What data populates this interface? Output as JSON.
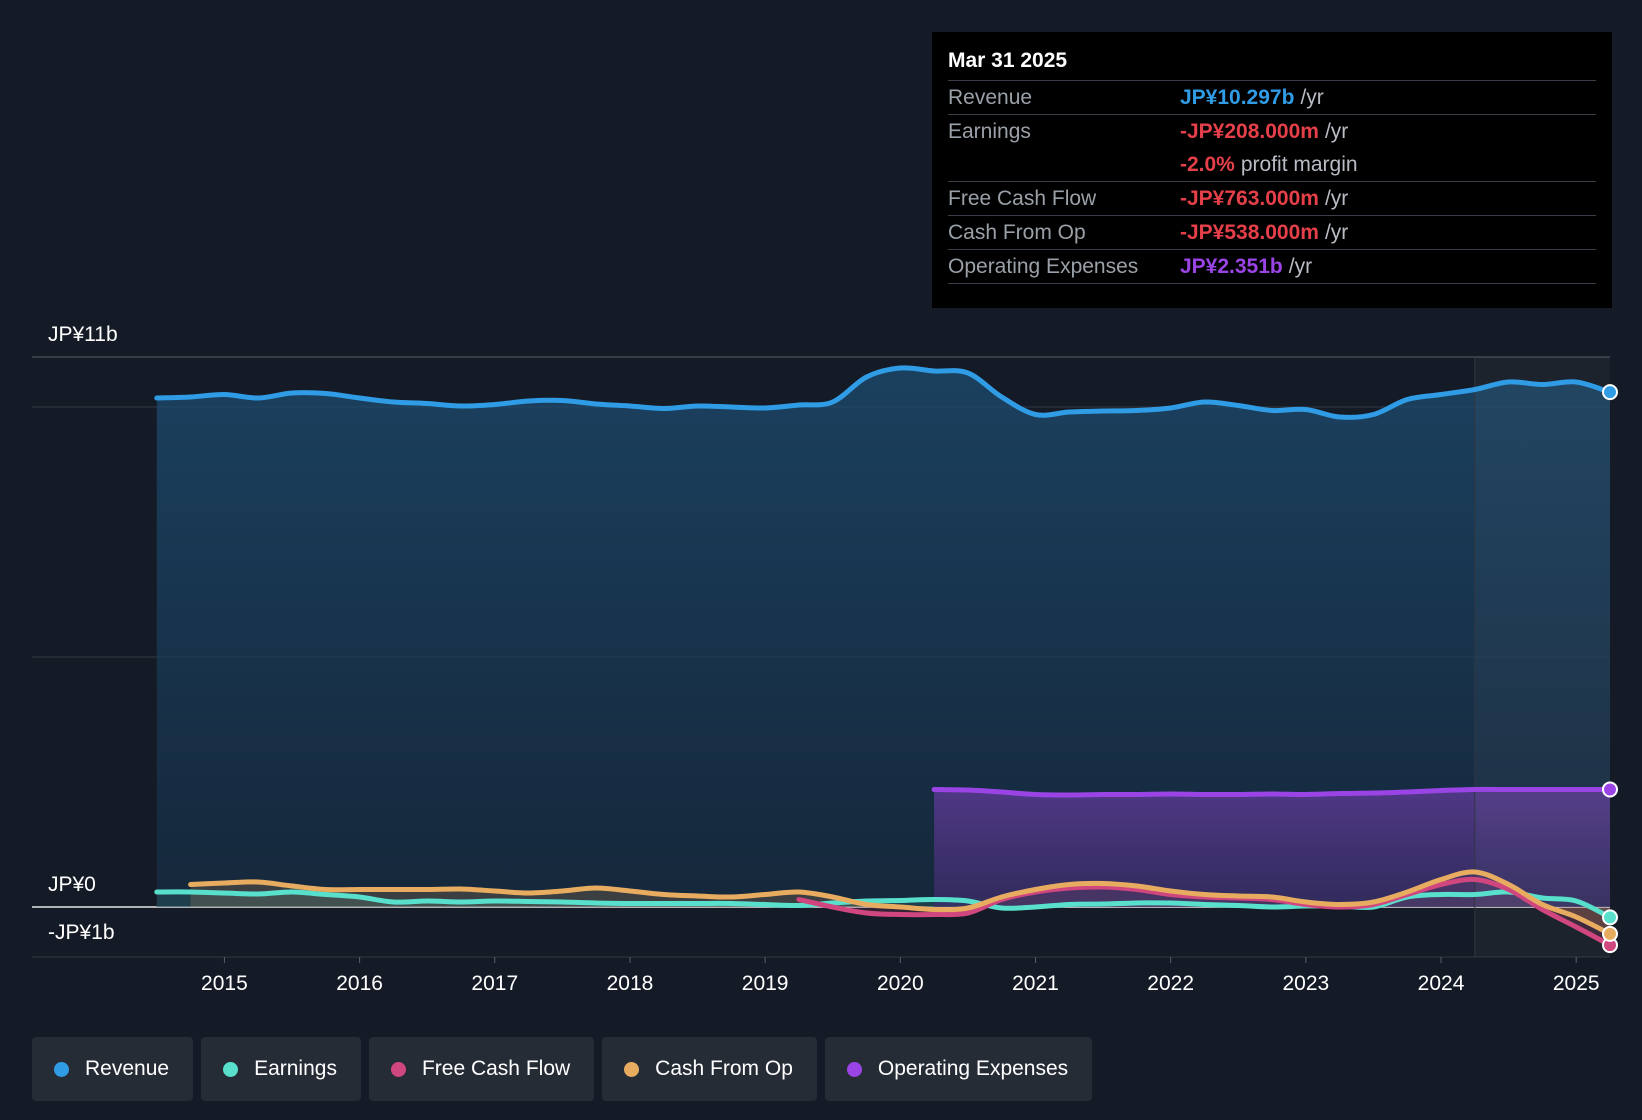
{
  "chart_data": {
    "type": "area",
    "y_unit": "JP¥",
    "ylim": [
      -1.0,
      11.0
    ],
    "y_tick_labels": [
      {
        "value": 11,
        "label": "JP¥11b"
      },
      {
        "value": 0,
        "label": "JP¥0"
      },
      {
        "value": -1,
        "label": "-JP¥1b"
      }
    ],
    "x_ticks": [
      "2015",
      "2016",
      "2017",
      "2018",
      "2019",
      "2020",
      "2021",
      "2022",
      "2023",
      "2024",
      "2025"
    ],
    "x_range": [
      2014.05,
      2025.25
    ],
    "forecast_start": 2024.25,
    "series": [
      {
        "name": "Revenue",
        "color": "#2f9ce5",
        "fill": true,
        "points": [
          [
            2014.5,
            10.18
          ],
          [
            2014.75,
            10.2
          ],
          [
            2015.0,
            10.25
          ],
          [
            2015.25,
            10.18
          ],
          [
            2015.5,
            10.28
          ],
          [
            2015.75,
            10.27
          ],
          [
            2016.0,
            10.18
          ],
          [
            2016.25,
            10.1
          ],
          [
            2016.5,
            10.07
          ],
          [
            2016.75,
            10.02
          ],
          [
            2017.0,
            10.05
          ],
          [
            2017.25,
            10.12
          ],
          [
            2017.5,
            10.13
          ],
          [
            2017.75,
            10.06
          ],
          [
            2018.0,
            10.02
          ],
          [
            2018.25,
            9.97
          ],
          [
            2018.5,
            10.02
          ],
          [
            2018.75,
            10.0
          ],
          [
            2019.0,
            9.98
          ],
          [
            2019.25,
            10.04
          ],
          [
            2019.5,
            10.1
          ],
          [
            2019.75,
            10.6
          ],
          [
            2020.0,
            10.78
          ],
          [
            2020.25,
            10.72
          ],
          [
            2020.5,
            10.68
          ],
          [
            2020.75,
            10.2
          ],
          [
            2021.0,
            9.85
          ],
          [
            2021.25,
            9.9
          ],
          [
            2021.5,
            9.92
          ],
          [
            2021.75,
            9.93
          ],
          [
            2022.0,
            9.98
          ],
          [
            2022.25,
            10.1
          ],
          [
            2022.5,
            10.03
          ],
          [
            2022.75,
            9.93
          ],
          [
            2023.0,
            9.95
          ],
          [
            2023.25,
            9.8
          ],
          [
            2023.5,
            9.85
          ],
          [
            2023.75,
            10.15
          ],
          [
            2024.0,
            10.25
          ],
          [
            2024.25,
            10.35
          ],
          [
            2024.5,
            10.5
          ],
          [
            2024.75,
            10.45
          ],
          [
            2025.0,
            10.5
          ],
          [
            2025.25,
            10.297
          ]
        ]
      },
      {
        "name": "Earnings",
        "color": "#59e0cc",
        "fill": true,
        "points": [
          [
            2014.5,
            0.3
          ],
          [
            2014.75,
            0.3
          ],
          [
            2015.0,
            0.28
          ],
          [
            2015.25,
            0.26
          ],
          [
            2015.5,
            0.3
          ],
          [
            2015.75,
            0.25
          ],
          [
            2016.0,
            0.2
          ],
          [
            2016.25,
            0.1
          ],
          [
            2016.5,
            0.12
          ],
          [
            2016.75,
            0.1
          ],
          [
            2017.0,
            0.12
          ],
          [
            2017.25,
            0.11
          ],
          [
            2017.5,
            0.1
          ],
          [
            2017.75,
            0.08
          ],
          [
            2018.0,
            0.07
          ],
          [
            2018.25,
            0.07
          ],
          [
            2018.5,
            0.07
          ],
          [
            2018.75,
            0.07
          ],
          [
            2019.0,
            0.05
          ],
          [
            2019.25,
            0.03
          ],
          [
            2019.5,
            0.08
          ],
          [
            2019.75,
            0.12
          ],
          [
            2020.0,
            0.13
          ],
          [
            2020.25,
            0.15
          ],
          [
            2020.5,
            0.12
          ],
          [
            2020.75,
            -0.02
          ],
          [
            2021.0,
            0.0
          ],
          [
            2021.25,
            0.05
          ],
          [
            2021.5,
            0.06
          ],
          [
            2021.75,
            0.08
          ],
          [
            2022.0,
            0.08
          ],
          [
            2022.25,
            0.05
          ],
          [
            2022.5,
            0.03
          ],
          [
            2022.75,
            0.0
          ],
          [
            2023.0,
            0.02
          ],
          [
            2023.25,
            0.02
          ],
          [
            2023.5,
            0.0
          ],
          [
            2023.75,
            0.2
          ],
          [
            2024.0,
            0.25
          ],
          [
            2024.25,
            0.25
          ],
          [
            2024.5,
            0.3
          ],
          [
            2024.75,
            0.18
          ],
          [
            2025.0,
            0.12
          ],
          [
            2025.25,
            -0.208
          ]
        ]
      },
      {
        "name": "Free Cash Flow",
        "color": "#d0467e",
        "fill": true,
        "points": [
          [
            2019.25,
            0.15
          ],
          [
            2019.5,
            0.0
          ],
          [
            2019.75,
            -0.12
          ],
          [
            2020.0,
            -0.15
          ],
          [
            2020.25,
            -0.15
          ],
          [
            2020.5,
            -0.12
          ],
          [
            2020.75,
            0.15
          ],
          [
            2021.0,
            0.3
          ],
          [
            2021.25,
            0.38
          ],
          [
            2021.5,
            0.4
          ],
          [
            2021.75,
            0.35
          ],
          [
            2022.0,
            0.25
          ],
          [
            2022.25,
            0.2
          ],
          [
            2022.5,
            0.18
          ],
          [
            2022.75,
            0.15
          ],
          [
            2023.0,
            0.05
          ],
          [
            2023.25,
            0.0
          ],
          [
            2023.5,
            0.05
          ],
          [
            2023.75,
            0.25
          ],
          [
            2024.0,
            0.45
          ],
          [
            2024.25,
            0.55
          ],
          [
            2024.5,
            0.35
          ],
          [
            2024.75,
            -0.05
          ],
          [
            2025.0,
            -0.4
          ],
          [
            2025.25,
            -0.763
          ]
        ]
      },
      {
        "name": "Cash From Op",
        "color": "#e8ac60",
        "fill": true,
        "points": [
          [
            2014.75,
            0.45
          ],
          [
            2015.0,
            0.48
          ],
          [
            2015.25,
            0.5
          ],
          [
            2015.5,
            0.42
          ],
          [
            2015.75,
            0.35
          ],
          [
            2016.0,
            0.35
          ],
          [
            2016.25,
            0.35
          ],
          [
            2016.5,
            0.35
          ],
          [
            2016.75,
            0.36
          ],
          [
            2017.0,
            0.32
          ],
          [
            2017.25,
            0.28
          ],
          [
            2017.5,
            0.32
          ],
          [
            2017.75,
            0.38
          ],
          [
            2018.0,
            0.32
          ],
          [
            2018.25,
            0.25
          ],
          [
            2018.5,
            0.22
          ],
          [
            2018.75,
            0.2
          ],
          [
            2019.0,
            0.25
          ],
          [
            2019.25,
            0.3
          ],
          [
            2019.5,
            0.2
          ],
          [
            2019.75,
            0.05
          ],
          [
            2020.0,
            0.0
          ],
          [
            2020.25,
            -0.05
          ],
          [
            2020.5,
            -0.02
          ],
          [
            2020.75,
            0.2
          ],
          [
            2021.0,
            0.35
          ],
          [
            2021.25,
            0.45
          ],
          [
            2021.5,
            0.47
          ],
          [
            2021.75,
            0.42
          ],
          [
            2022.0,
            0.32
          ],
          [
            2022.25,
            0.25
          ],
          [
            2022.5,
            0.22
          ],
          [
            2022.75,
            0.2
          ],
          [
            2023.0,
            0.1
          ],
          [
            2023.25,
            0.05
          ],
          [
            2023.5,
            0.1
          ],
          [
            2023.75,
            0.3
          ],
          [
            2024.0,
            0.55
          ],
          [
            2024.25,
            0.7
          ],
          [
            2024.5,
            0.45
          ],
          [
            2024.75,
            0.05
          ],
          [
            2025.0,
            -0.2
          ],
          [
            2025.25,
            -0.538
          ]
        ]
      },
      {
        "name": "Operating Expenses",
        "color": "#9b44e6",
        "fill": true,
        "points": [
          [
            2020.25,
            2.35
          ],
          [
            2020.5,
            2.34
          ],
          [
            2020.75,
            2.3
          ],
          [
            2021.0,
            2.25
          ],
          [
            2021.25,
            2.24
          ],
          [
            2021.5,
            2.25
          ],
          [
            2021.75,
            2.25
          ],
          [
            2022.0,
            2.26
          ],
          [
            2022.25,
            2.25
          ],
          [
            2022.5,
            2.25
          ],
          [
            2022.75,
            2.26
          ],
          [
            2023.0,
            2.25
          ],
          [
            2023.25,
            2.27
          ],
          [
            2023.5,
            2.28
          ],
          [
            2023.75,
            2.3
          ],
          [
            2024.0,
            2.33
          ],
          [
            2024.25,
            2.35
          ],
          [
            2024.5,
            2.35
          ],
          [
            2024.75,
            2.35
          ],
          [
            2025.0,
            2.35
          ],
          [
            2025.25,
            2.351
          ]
        ]
      }
    ],
    "tooltip": {
      "date": "Mar 31 2025",
      "rows": [
        {
          "label": "Revenue",
          "value": "JP¥10.297b",
          "unit": "/yr",
          "color": "#2f9ce5"
        },
        {
          "label": "Earnings",
          "value": "-JP¥208.000m",
          "unit": "/yr",
          "color": "#e5404a"
        },
        {
          "label": "",
          "value": "-2.0%",
          "unit": "profit margin",
          "color": "#e5404a"
        },
        {
          "label": "Free Cash Flow",
          "value": "-JP¥763.000m",
          "unit": "/yr",
          "color": "#e5404a"
        },
        {
          "label": "Cash From Op",
          "value": "-JP¥538.000m",
          "unit": "/yr",
          "color": "#e5404a"
        },
        {
          "label": "Operating Expenses",
          "value": "JP¥2.351b",
          "unit": "/yr",
          "color": "#9b44e6"
        }
      ]
    },
    "legend": [
      {
        "name": "Revenue",
        "color": "#2f9ce5"
      },
      {
        "name": "Earnings",
        "color": "#59e0cc"
      },
      {
        "name": "Free Cash Flow",
        "color": "#d0467e"
      },
      {
        "name": "Cash From Op",
        "color": "#e8ac60"
      },
      {
        "name": "Operating Expenses",
        "color": "#9b44e6"
      }
    ]
  }
}
